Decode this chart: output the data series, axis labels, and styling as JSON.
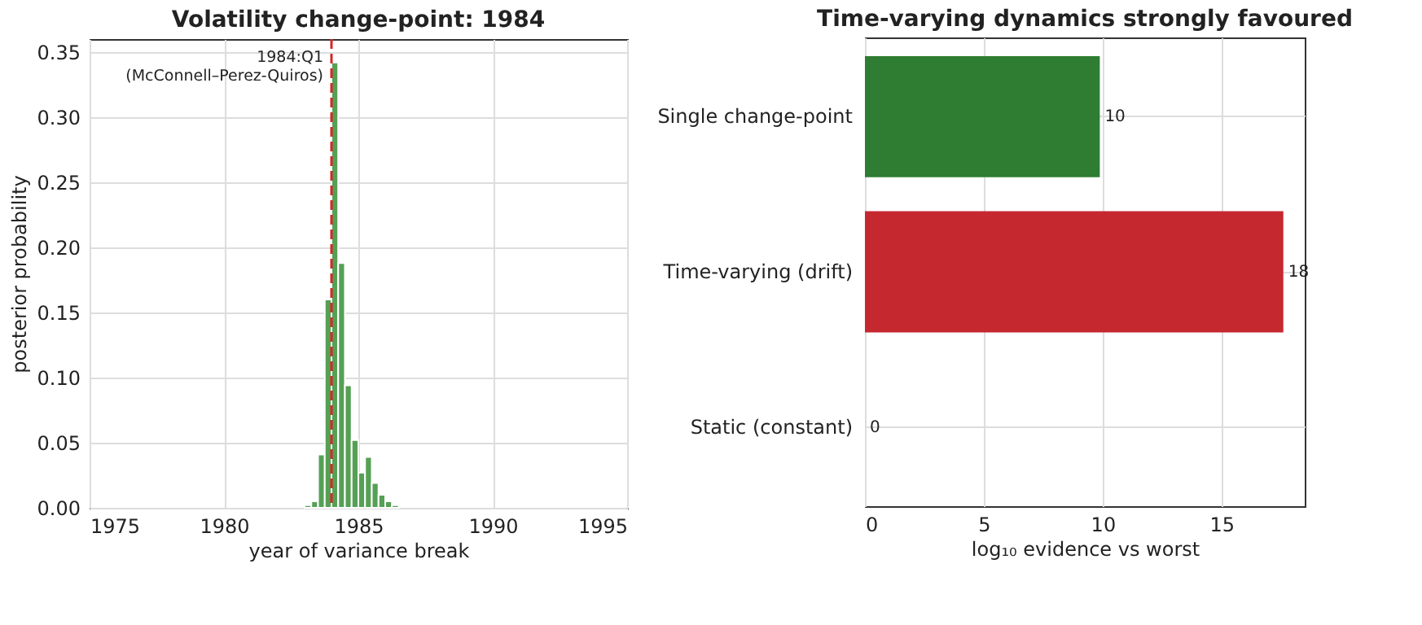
{
  "chart_data": [
    {
      "type": "histogram",
      "title": "Volatility change-point: 1984",
      "xlabel": "year of variance break",
      "ylabel": "posterior probability",
      "bins": [
        1983.0,
        1983.25,
        1983.5,
        1983.75,
        1984.0,
        1984.25,
        1984.5,
        1984.75,
        1985.0,
        1985.25,
        1985.5,
        1985.75,
        1986.0,
        1986.25,
        1986.5
      ],
      "values": [
        0.002,
        0.005,
        0.041,
        0.16,
        0.342,
        0.188,
        0.094,
        0.052,
        0.027,
        0.039,
        0.019,
        0.01,
        0.005,
        0.002
      ],
      "color": "#55a055",
      "xlim": [
        1975,
        1995
      ],
      "xticks": [
        1975,
        1980,
        1985,
        1990,
        1995
      ],
      "ylim": [
        0,
        0.36
      ],
      "yticks": [
        {
          "value": 0,
          "label": "0.00"
        },
        0.05,
        {
          "value": 0.1,
          "label": "0.10"
        },
        0.15,
        {
          "value": 0.2,
          "label": "0.20"
        },
        0.25,
        {
          "value": 0.3,
          "label": "0.30"
        },
        0.35
      ],
      "ref_lines": [
        {
          "axis": "x",
          "value": 1984.0,
          "label": "1984:Q1 (McConnell–Perez-Quiros)",
          "color": "#d62728",
          "line_style": "dashed"
        }
      ],
      "grid": true
    },
    {
      "type": "bar",
      "orientation": "horizontal",
      "title": "Time-varying dynamics strongly favoured",
      "xlabel": "log₁₀ evidence vs worst",
      "categories": [
        "Single change-point",
        "Time-varying (drift)",
        "Static (constant)"
      ],
      "values": [
        9.88,
        17.6,
        0
      ],
      "colors": [
        "#2e7d32",
        "#c62830",
        "#9e9e9e"
      ],
      "value_labels": [
        "10",
        "18",
        "0"
      ],
      "xlim": [
        0,
        18.5
      ],
      "xticks": [
        0,
        5,
        10,
        15
      ],
      "grid": true
    }
  ]
}
